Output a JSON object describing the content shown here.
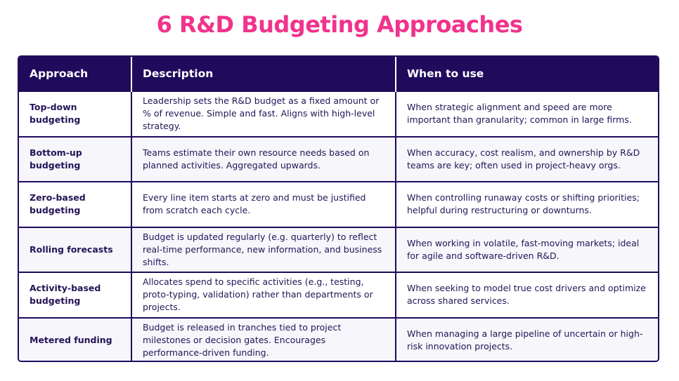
{
  "title": "6 R&D Budgeting Approaches",
  "table": {
    "headers": [
      "Approach",
      "Description",
      "When to use"
    ],
    "rows": [
      {
        "approach": "Top-down budgeting",
        "description": "Leadership sets the R&D budget as a fixed amount or % of revenue. Simple and fast. Aligns with high-level strategy.",
        "when": "When strategic alignment and speed are more important than granularity; common in large firms."
      },
      {
        "approach": "Bottom-up budgeting",
        "description": "Teams estimate their own resource needs based on planned activities. Aggregated upwards.",
        "when": "When accuracy, cost realism, and ownership by R&D teams are key; often used in project-heavy orgs."
      },
      {
        "approach": "Zero-based budgeting",
        "description": "Every line item starts at zero and must be justified from scratch each cycle.",
        "when": "When controlling runaway costs or shifting priorities; helpful during restructuring or downturns."
      },
      {
        "approach": "Rolling forecasts",
        "description": "Budget is updated regularly (e.g. quarterly) to reflect real-time performance, new information, and business shifts.",
        "when": "When working in volatile, fast-moving markets; ideal for agile and software-driven R&D."
      },
      {
        "approach": "Activity-based budgeting",
        "description": "Allocates spend to specific activities (e.g., testing, proto-typing, validation) rather than departments or projects.",
        "when": "When seeking to model true cost drivers and optimize across shared services."
      },
      {
        "approach": "Metered funding",
        "description": "Budget is released in tranches tied to project milestones or decision gates. Encourages performance-driven funding.",
        "when": "When managing a large pipeline of uncertain or high-risk innovation projects."
      }
    ]
  },
  "colors": {
    "title": "#f0338c",
    "header_bg": "#1f0a5c",
    "border": "#1f0a5c",
    "text": "#241456",
    "row_alt_bg": "#f6f6fb"
  }
}
